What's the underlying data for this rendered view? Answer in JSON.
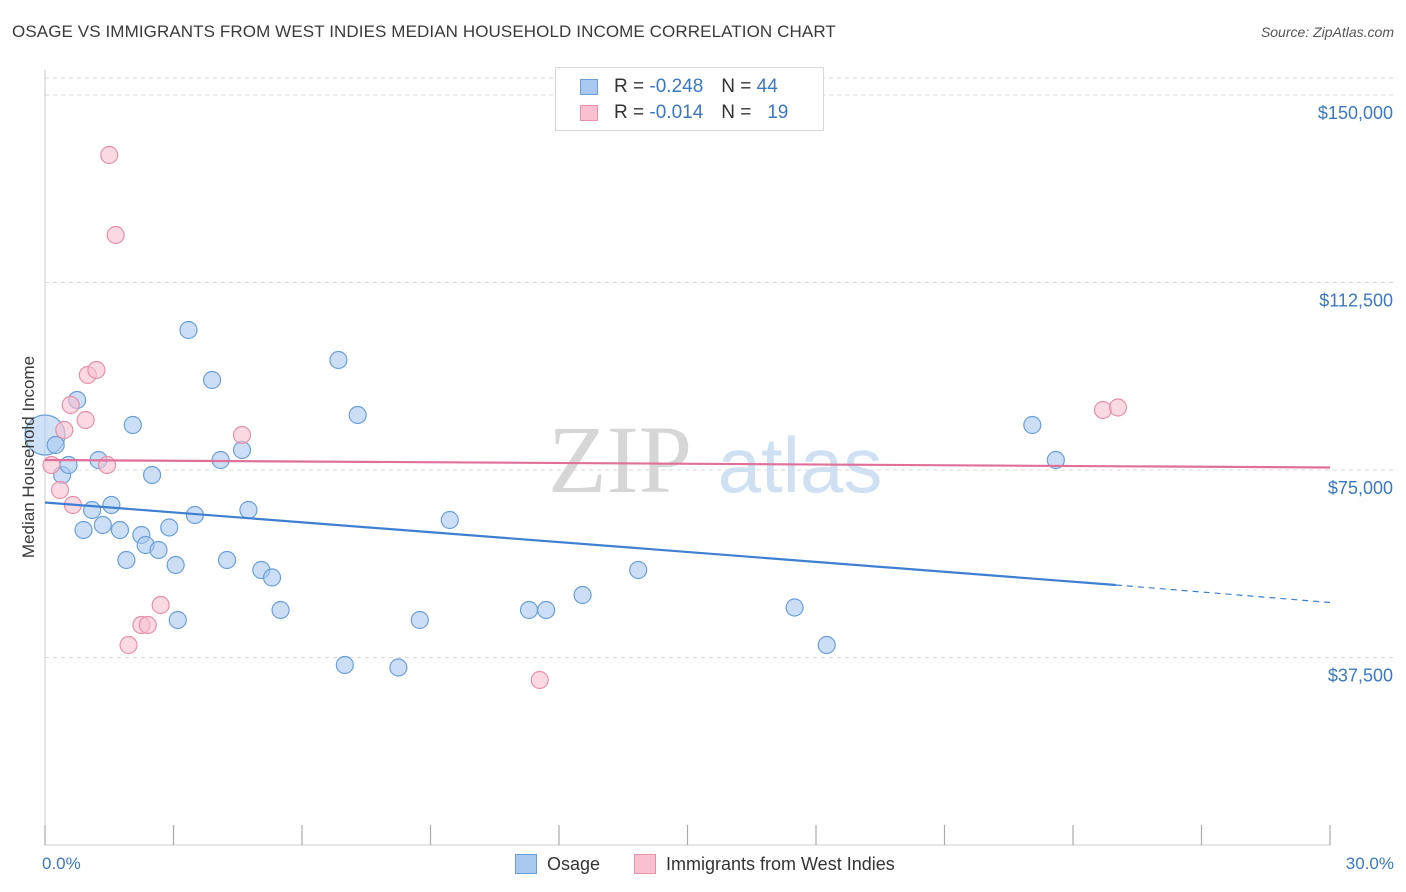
{
  "header": {
    "title": "OSAGE VS IMMIGRANTS FROM WEST INDIES MEDIAN HOUSEHOLD INCOME CORRELATION CHART",
    "source": "Source: ZipAtlas.com"
  },
  "watermark": {
    "zip": "ZIP",
    "atlas": "atlas"
  },
  "legend": {
    "rows": [
      {
        "r_label": "R =",
        "r_value": "-0.248",
        "n_label": "N =",
        "n_value": "44",
        "color": "#a8c8f0",
        "border": "#6a9fd8"
      },
      {
        "r_label": "R =",
        "r_value": "-0.014",
        "n_label": "N =",
        "n_value": "19",
        "color": "#f8c0d0",
        "border": "#e890a8"
      }
    ]
  },
  "bottom_legend": [
    "Osage",
    "Immigrants from West Indies"
  ],
  "colors": {
    "osage_fill": "#a8c8f0",
    "osage_stroke": "#6a9fd8",
    "osage_line": "#3f7fd0",
    "wi_fill": "#f8c0d0",
    "wi_stroke": "#e890a8",
    "wi_line": "#e0709a",
    "tick_text": "#3b78c4",
    "grid": "#d8d8d8"
  },
  "chart_data": {
    "type": "scatter",
    "ylabel": "Median Household Income",
    "xlim": [
      0,
      30
    ],
    "ylim": [
      0,
      155000
    ],
    "x_tick_labels": [
      "0.0%",
      "30.0%"
    ],
    "y_ticks": [
      37500,
      75000,
      112500,
      150000
    ],
    "y_tick_labels": [
      "$37,500",
      "$75,000",
      "$112,500",
      "$150,000"
    ],
    "grid": true,
    "series": [
      {
        "name": "Osage",
        "points": [
          [
            0.0,
            82000
          ],
          [
            0.25,
            80000
          ],
          [
            0.4,
            74000
          ],
          [
            0.55,
            76000
          ],
          [
            0.75,
            89000
          ],
          [
            0.9,
            63000
          ],
          [
            1.1,
            67000
          ],
          [
            1.25,
            77000
          ],
          [
            1.35,
            64000
          ],
          [
            1.55,
            68000
          ],
          [
            1.75,
            63000
          ],
          [
            1.9,
            57000
          ],
          [
            2.05,
            84000
          ],
          [
            2.25,
            62000
          ],
          [
            2.35,
            60000
          ],
          [
            2.5,
            74000
          ],
          [
            2.65,
            59000
          ],
          [
            2.9,
            63500
          ],
          [
            3.05,
            56000
          ],
          [
            3.1,
            45000
          ],
          [
            3.35,
            103000
          ],
          [
            3.5,
            66000
          ],
          [
            3.9,
            93000
          ],
          [
            4.1,
            77000
          ],
          [
            4.25,
            57000
          ],
          [
            4.6,
            79000
          ],
          [
            4.75,
            67000
          ],
          [
            5.05,
            55000
          ],
          [
            5.3,
            53500
          ],
          [
            5.5,
            47000
          ],
          [
            6.85,
            97000
          ],
          [
            7.0,
            36000
          ],
          [
            7.3,
            86000
          ],
          [
            8.25,
            35500
          ],
          [
            8.75,
            45000
          ],
          [
            9.45,
            65000
          ],
          [
            11.3,
            47000
          ],
          [
            11.7,
            47000
          ],
          [
            12.55,
            50000
          ],
          [
            13.85,
            55000
          ],
          [
            17.5,
            47500
          ],
          [
            18.25,
            40000
          ],
          [
            23.05,
            84000
          ],
          [
            23.6,
            77000
          ]
        ],
        "trend": {
          "x_start": 0,
          "y_start": 68500,
          "x_solid_end": 25,
          "y_solid_end": 52000,
          "x_end": 30,
          "y_end": 48500
        }
      },
      {
        "name": "Immigrants from West Indies",
        "points": [
          [
            0.15,
            76000
          ],
          [
            0.35,
            71000
          ],
          [
            0.45,
            83000
          ],
          [
            0.6,
            88000
          ],
          [
            0.65,
            68000
          ],
          [
            0.95,
            85000
          ],
          [
            1.0,
            94000
          ],
          [
            1.2,
            95000
          ],
          [
            1.45,
            76000
          ],
          [
            1.5,
            138000
          ],
          [
            1.65,
            122000
          ],
          [
            1.95,
            40000
          ],
          [
            2.25,
            44000
          ],
          [
            2.4,
            44000
          ],
          [
            2.7,
            48000
          ],
          [
            4.6,
            82000
          ],
          [
            11.55,
            33000
          ],
          [
            24.7,
            87000
          ],
          [
            25.05,
            87500
          ]
        ],
        "trend": {
          "x_start": 0,
          "y_start": 77000,
          "x_end": 30,
          "y_end": 75500
        }
      }
    ]
  }
}
